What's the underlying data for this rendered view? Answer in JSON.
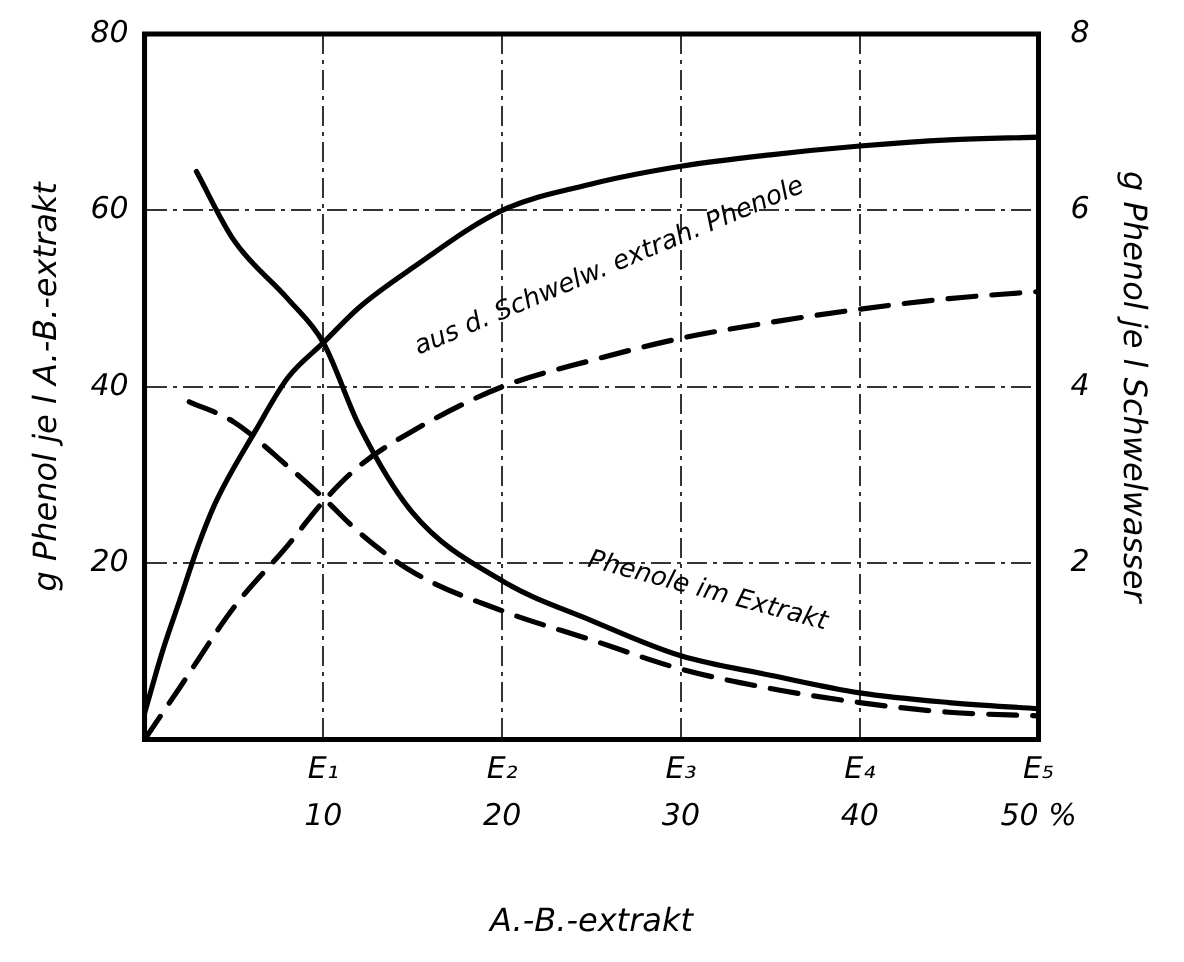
{
  "chart_data": {
    "type": "line",
    "xlabel": "A.-B.-extrakt",
    "ylabel": "g Phenol je l A.-B.-extrakt",
    "y2label": "g Phenol je l Schwelwasser",
    "xlim": [
      0,
      50
    ],
    "xticks": [
      10,
      20,
      30,
      40,
      {
        "value": 50,
        "label": "50 %"
      }
    ],
    "ylim": [
      0,
      80
    ],
    "yticks": [
      20,
      40,
      60,
      80
    ],
    "y2lim": [
      0,
      8
    ],
    "y2ticks": [
      2,
      4,
      6,
      8
    ],
    "grid": true,
    "legend": false,
    "series": [
      {
        "color": "#000000",
        "line_style": "solid",
        "x": [
          0,
          1,
          2,
          3,
          4,
          6.2,
          8,
          10,
          12,
          15,
          20,
          25,
          30,
          35,
          40,
          45,
          50
        ],
        "values": [
          3,
          10,
          16,
          22,
          27,
          35,
          41,
          45,
          49,
          53.5,
          60,
          63,
          65,
          66.3,
          67.3,
          68,
          68.3
        ]
      },
      {
        "color": "#000000",
        "line_style": "dashed",
        "x": [
          0,
          2,
          5,
          8,
          10,
          12,
          15,
          20,
          25,
          30,
          35,
          40,
          45,
          50
        ],
        "values": [
          0,
          6,
          15,
          22,
          27,
          31,
          35,
          40,
          43,
          45.5,
          47.3,
          48.8,
          50,
          50.8
        ]
      },
      {
        "color": "#000000",
        "line_style": "solid",
        "x": [
          2.9,
          5,
          8,
          10,
          12,
          15,
          20,
          25,
          30,
          35,
          40,
          45,
          50
        ],
        "values": [
          64.4,
          56.6,
          50,
          45,
          35.6,
          25.7,
          18,
          13.5,
          9.5,
          7.3,
          5.3,
          4.2,
          3.5
        ]
      },
      {
        "color": "#000000",
        "line_style": "dashed",
        "x": [
          2.5,
          5,
          8,
          10,
          12,
          15,
          20,
          25,
          30,
          35,
          40,
          45,
          50
        ],
        "values": [
          38.3,
          36,
          31,
          27.4,
          23.5,
          19,
          14.6,
          11.3,
          8,
          5.8,
          4.2,
          3.1,
          2.7
        ]
      }
    ],
    "annotations": [
      "aus d. Schwelw. extrah. Phenole",
      "Phenole im Extrakt",
      "E₁",
      "E₂",
      "E₃",
      "E₄",
      "E₅"
    ]
  }
}
